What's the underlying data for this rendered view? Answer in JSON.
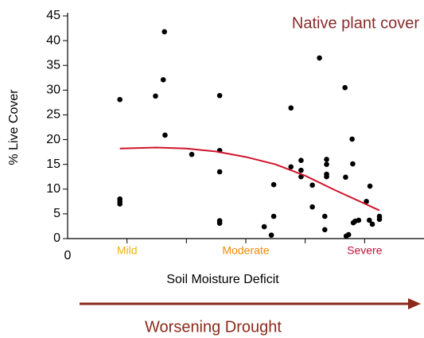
{
  "chart_data": {
    "type": "scatter",
    "annotation": "Native plant cover",
    "annotation_color": "#8b2a2a",
    "xlabel": "Soil Moisture Deficit",
    "ylabel": "% Live Cover",
    "arrow_label": "Worsening Drought",
    "arrow_color": "#8b2a1a",
    "xlim": [
      0,
      6
    ],
    "xticks": [
      0,
      {
        "value": 1,
        "label": "Mild"
      },
      {
        "value": 3,
        "label": "Moderate"
      },
      {
        "value": 5,
        "label": "Severe"
      }
    ],
    "xtick_colors": [
      "#000000",
      "#f0b400",
      "#f08a00",
      "#c0143c"
    ],
    "xminor_ticks": [
      2,
      4
    ],
    "ylim": [
      0,
      45
    ],
    "yticks": [
      0,
      5,
      10,
      15,
      20,
      25,
      30,
      35,
      40,
      45
    ],
    "series": [
      {
        "color": "#000000",
        "x": [
          0.88,
          0.88,
          0.88,
          0.88,
          1.48,
          1.61,
          1.63,
          1.64,
          2.09,
          2.56,
          2.56,
          2.56,
          2.56,
          2.56,
          3.31,
          3.43,
          3.47,
          3.47,
          3.76,
          3.76,
          3.93,
          3.93,
          3.93,
          4.12,
          4.12,
          4.24,
          4.33,
          4.33,
          4.36,
          4.36,
          4.36,
          4.36,
          4.67,
          4.68,
          4.69,
          4.73,
          4.79,
          4.8,
          4.81,
          4.84,
          4.9,
          5.03,
          5.09,
          5.08,
          5.13,
          5.25,
          5.25
        ],
        "values": [
          28.1,
          8.0,
          7.5,
          7.0,
          28.8,
          32.1,
          41.8,
          20.9,
          17.0,
          28.9,
          17.8,
          13.5,
          3.6,
          3.1,
          2.4,
          0.7,
          10.9,
          4.5,
          26.4,
          14.5,
          15.8,
          13.8,
          12.5,
          10.8,
          6.4,
          36.5,
          4.5,
          1.8,
          16.0,
          15.0,
          13.0,
          12.5,
          30.5,
          12.4,
          0.5,
          0.8,
          20.1,
          15.1,
          3.2,
          3.5,
          3.7,
          7.5,
          10.6,
          3.7,
          2.9,
          4.5,
          3.9
        ]
      }
    ],
    "curve": {
      "color": "#d0142c",
      "x": [
        0.88,
        1.5,
        2,
        2.5,
        3,
        3.5,
        4,
        4.5,
        5.25
      ],
      "values": [
        18.2,
        18.4,
        18.2,
        17.6,
        16.5,
        15,
        12.7,
        9.8,
        5.7
      ]
    }
  }
}
